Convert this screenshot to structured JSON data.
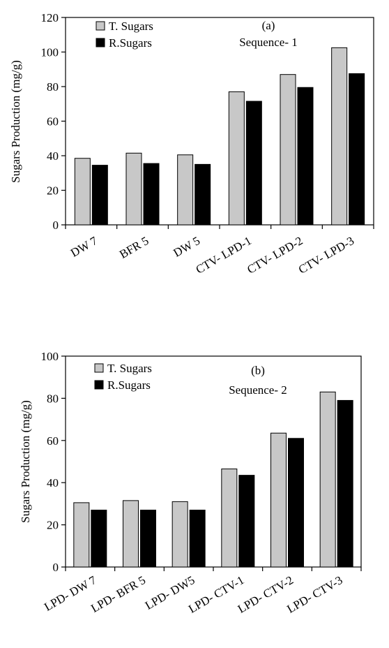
{
  "chart_data": [
    {
      "type": "bar",
      "title": "(a)",
      "subtitle": "Sequence- 1",
      "xlabel": "",
      "ylabel": "Sugars Production (mg/g)",
      "ylim": [
        0,
        120
      ],
      "yticks": [
        0,
        20,
        40,
        60,
        80,
        100,
        120
      ],
      "grid": false,
      "legend": "top-left",
      "categories": [
        "DW 7",
        "BFR 5",
        "DW 5",
        "CTV- LPD-1",
        "CTV- LPD-2",
        "CTV- LPD-3"
      ],
      "series": [
        {
          "name": "T. Sugars",
          "color": "#c8c8c8",
          "values": [
            38.5,
            41.5,
            40.5,
            77,
            87,
            102.5
          ]
        },
        {
          "name": "R.Sugars",
          "color": "#000000",
          "values": [
            34.5,
            35.5,
            35,
            71.5,
            79.5,
            87.5
          ]
        }
      ]
    },
    {
      "type": "bar",
      "title": "(b)",
      "subtitle": "Sequence- 2",
      "xlabel": "",
      "ylabel": "Sugars Production (mg/g)",
      "ylim": [
        0,
        100
      ],
      "yticks": [
        0,
        20,
        40,
        60,
        80,
        100
      ],
      "grid": false,
      "legend": "top-left",
      "categories": [
        "LPD- DW 7",
        "LPD- BFR 5",
        "LPD- DW5",
        "LPD- CTV-1",
        "LPD- CTV-2",
        "LPD- CTV-3"
      ],
      "series": [
        {
          "name": "T. Sugars",
          "color": "#c8c8c8",
          "values": [
            30.5,
            31.5,
            31,
            46.5,
            63.5,
            83
          ]
        },
        {
          "name": "R.Sugars",
          "color": "#000000",
          "values": [
            27,
            27,
            27,
            43.5,
            61,
            79
          ]
        }
      ]
    }
  ]
}
